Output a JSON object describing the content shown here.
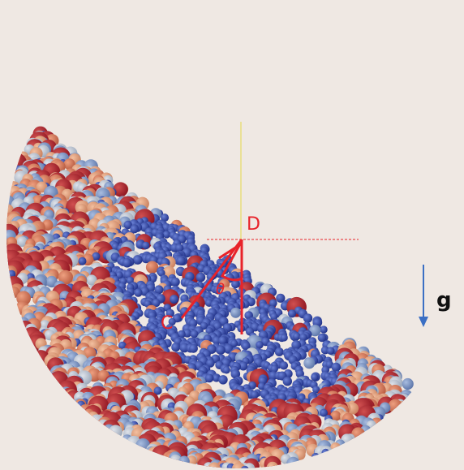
{
  "annotations": {
    "surface_point": "D",
    "center": "C",
    "angle": "θ",
    "gravity": "g"
  }
}
